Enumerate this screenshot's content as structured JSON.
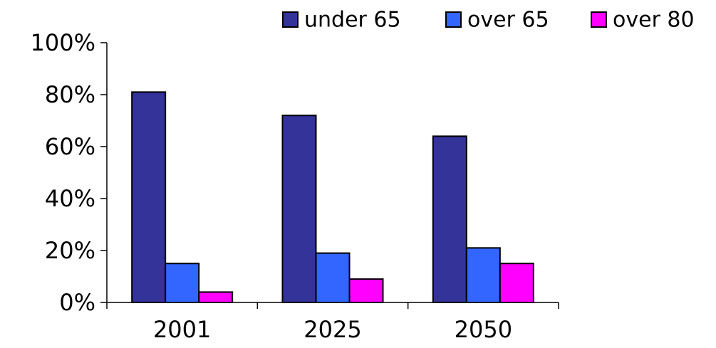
{
  "chart_data": {
    "type": "bar",
    "title": "",
    "xlabel": "",
    "ylabel": "",
    "categories": [
      "2001",
      "2025",
      "2050"
    ],
    "series": [
      {
        "name": "under 65",
        "color": "#333399",
        "values": [
          81,
          72,
          64
        ]
      },
      {
        "name": "over 65",
        "color": "#3366FF",
        "values": [
          15,
          19,
          21
        ]
      },
      {
        "name": "over 80",
        "color": "#FF00FF",
        "values": [
          4,
          9,
          15
        ]
      }
    ],
    "ylim": [
      0,
      100
    ],
    "yticks": [
      0,
      20,
      40,
      60,
      80,
      100
    ],
    "ytick_labels": [
      "0%",
      "20%",
      "40%",
      "60%",
      "80%",
      "100%"
    ],
    "grid": false,
    "legend_position": "top-right"
  }
}
